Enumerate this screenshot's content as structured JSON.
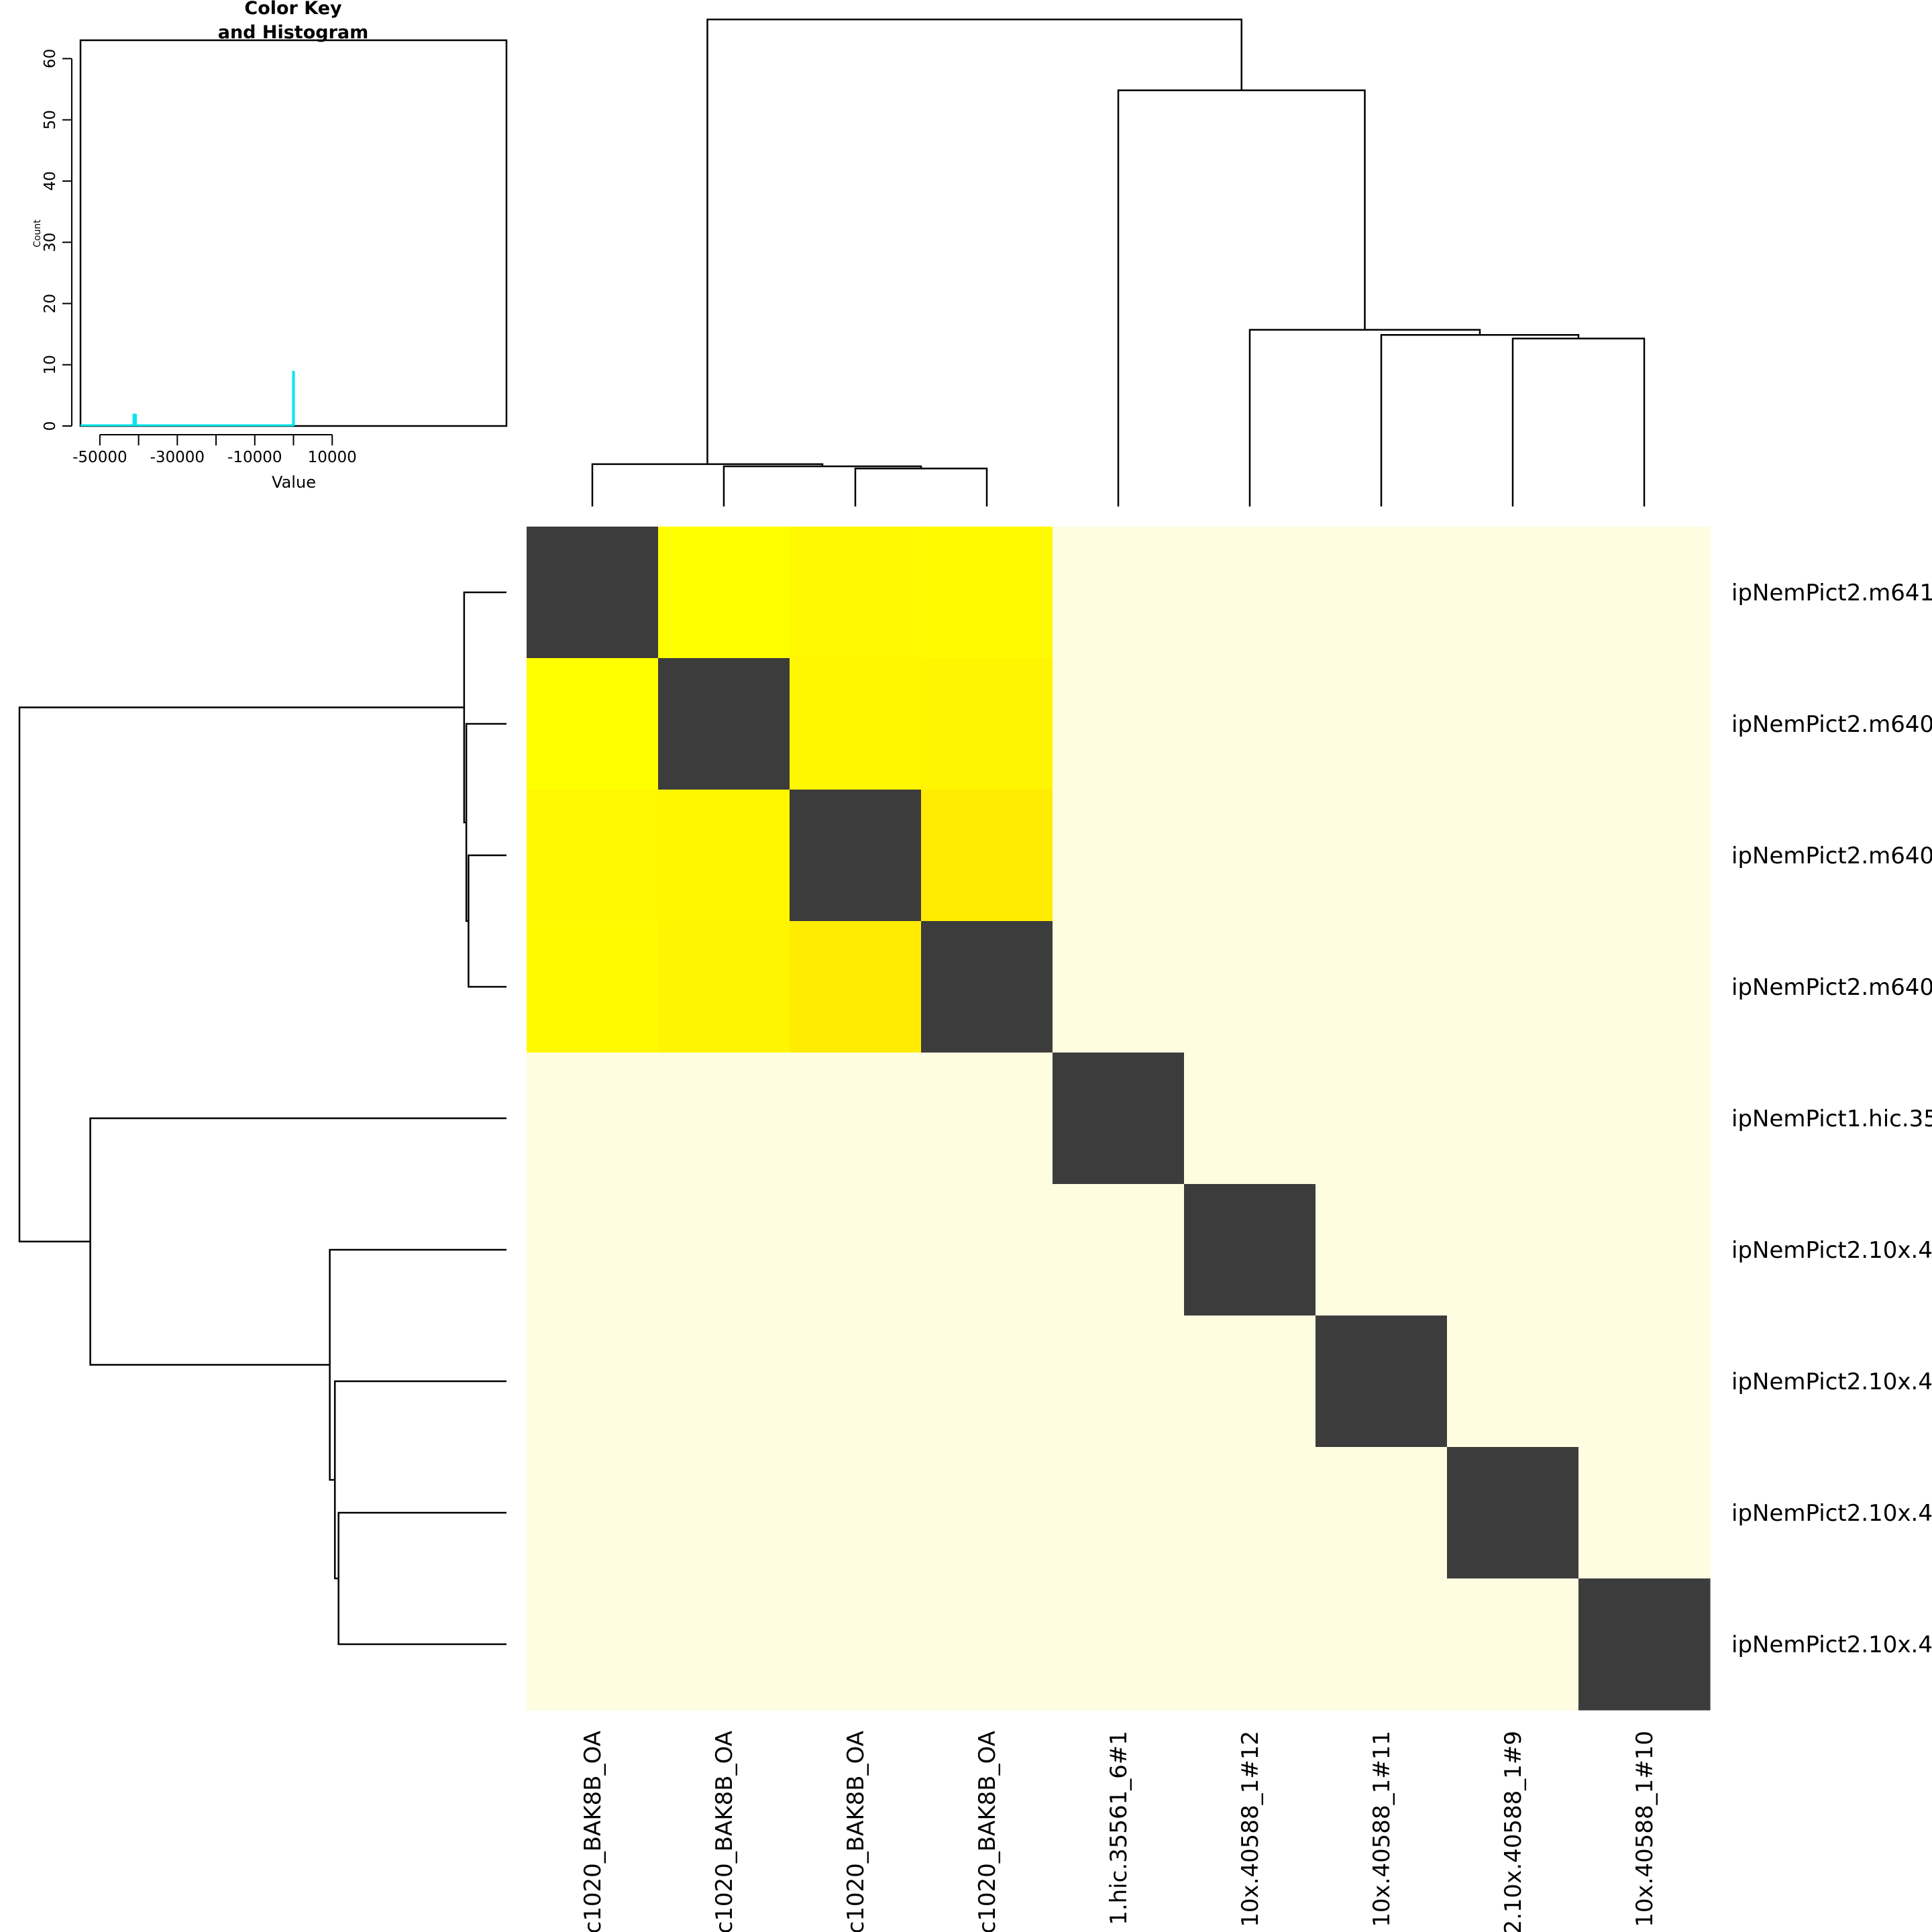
{
  "chart_data": {
    "type": "heatmap",
    "title": "",
    "row_labels": [
      "ipNemPict2.m641",
      "ipNemPict2.m640",
      "ipNemPict2.m640",
      "ipNemPict2.m640",
      "ipNemPict1.hic.35",
      "ipNemPict2.10x.4",
      "ipNemPict2.10x.4",
      "ipNemPict2.10x.4",
      "ipNemPict2.10x.4"
    ],
    "col_labels": [
      "c1020_BAK8B_OA",
      "c1020_BAK8B_OA",
      "c1020_BAK8B_OA",
      "c1020_BAK8B_OA",
      "1.hic.35561_6#1",
      "10x.40588_1#12",
      "10x.40588_1#11",
      "2.10x.40588_1#9",
      "10x.40588_1#10"
    ],
    "value_matrix": [
      [
        -41000,
        2000,
        1800,
        1900,
        40,
        40,
        40,
        40,
        40
      ],
      [
        2000,
        -41000,
        1700,
        1600,
        40,
        40,
        40,
        40,
        40
      ],
      [
        1800,
        1700,
        -41000,
        1200,
        40,
        40,
        40,
        40,
        40
      ],
      [
        1900,
        1600,
        1200,
        -41000,
        40,
        40,
        40,
        40,
        40
      ],
      [
        40,
        40,
        40,
        40,
        -41000,
        40,
        40,
        40,
        40
      ],
      [
        40,
        40,
        40,
        40,
        40,
        -41000,
        40,
        40,
        40
      ],
      [
        40,
        40,
        40,
        40,
        40,
        40,
        -41000,
        40,
        40
      ],
      [
        40,
        40,
        40,
        40,
        40,
        40,
        40,
        -41000,
        40
      ],
      [
        40,
        40,
        40,
        40,
        40,
        40,
        40,
        40,
        -41000
      ]
    ],
    "cell_colors": [
      [
        "#3c3c3c",
        "#ffff00",
        "#fff800",
        "#fffa00",
        "#fffde1",
        "#fffde1",
        "#fffde1",
        "#fffde1",
        "#fffde1"
      ],
      [
        "#ffff00",
        "#3c3c3c",
        "#fff700",
        "#fff500",
        "#fffde1",
        "#fffde1",
        "#fffde1",
        "#fffde1",
        "#fffde1"
      ],
      [
        "#fff800",
        "#fff700",
        "#3c3c3c",
        "#ffec00",
        "#fffde1",
        "#fffde1",
        "#fffde1",
        "#fffde1",
        "#fffde1"
      ],
      [
        "#fffa00",
        "#fff500",
        "#ffec00",
        "#3c3c3c",
        "#fffde1",
        "#fffde1",
        "#fffde1",
        "#fffde1",
        "#fffde1"
      ],
      [
        "#fffde1",
        "#fffde1",
        "#fffde1",
        "#fffde1",
        "#3c3c3c",
        "#fffde1",
        "#fffde1",
        "#fffde1",
        "#fffde1"
      ],
      [
        "#fffde1",
        "#fffde1",
        "#fffde1",
        "#fffde1",
        "#fffde1",
        "#3c3c3c",
        "#fffde1",
        "#fffde1",
        "#fffde1"
      ],
      [
        "#fffde1",
        "#fffde1",
        "#fffde1",
        "#fffde1",
        "#fffde1",
        "#fffde1",
        "#3c3c3c",
        "#fffde1",
        "#fffde1"
      ],
      [
        "#fffde1",
        "#fffde1",
        "#fffde1",
        "#fffde1",
        "#fffde1",
        "#fffde1",
        "#fffde1",
        "#3c3c3c",
        "#fffde1"
      ],
      [
        "#fffde1",
        "#fffde1",
        "#fffde1",
        "#fffde1",
        "#fffde1",
        "#fffde1",
        "#fffde1",
        "#fffde1",
        "#3c3c3c"
      ]
    ],
    "column_dendrogram": {
      "merges": [
        {
          "a": [
            "leaf",
            2
          ],
          "b": [
            "leaf",
            3
          ],
          "height": 5.2
        },
        {
          "a": [
            "leaf",
            1
          ],
          "b": [
            "node",
            0
          ],
          "height": 5.5
        },
        {
          "a": [
            "leaf",
            0
          ],
          "b": [
            "node",
            1
          ],
          "height": 5.8
        },
        {
          "a": [
            "leaf",
            7
          ],
          "b": [
            "leaf",
            8
          ],
          "height": 23.0
        },
        {
          "a": [
            "leaf",
            6
          ],
          "b": [
            "node",
            3
          ],
          "height": 23.5
        },
        {
          "a": [
            "leaf",
            5
          ],
          "b": [
            "node",
            4
          ],
          "height": 24.2
        },
        {
          "a": [
            "leaf",
            4
          ],
          "b": [
            "node",
            5
          ],
          "height": 57.0
        },
        {
          "a": [
            "node",
            2
          ],
          "b": [
            "node",
            6
          ],
          "height": 66.7
        }
      ],
      "max_height": 66.7
    },
    "row_dendrogram": {
      "merges": [
        {
          "a": [
            "leaf",
            2
          ],
          "b": [
            "leaf",
            3
          ],
          "height": 5.2
        },
        {
          "a": [
            "leaf",
            1
          ],
          "b": [
            "node",
            0
          ],
          "height": 5.5
        },
        {
          "a": [
            "leaf",
            0
          ],
          "b": [
            "node",
            1
          ],
          "height": 5.8
        },
        {
          "a": [
            "leaf",
            7
          ],
          "b": [
            "leaf",
            8
          ],
          "height": 23.0
        },
        {
          "a": [
            "leaf",
            6
          ],
          "b": [
            "node",
            3
          ],
          "height": 23.5
        },
        {
          "a": [
            "leaf",
            5
          ],
          "b": [
            "node",
            4
          ],
          "height": 24.2
        },
        {
          "a": [
            "leaf",
            4
          ],
          "b": [
            "node",
            5
          ],
          "height": 57.0
        },
        {
          "a": [
            "node",
            2
          ],
          "b": [
            "node",
            6
          ],
          "height": 66.7
        }
      ],
      "max_height": 66.7
    },
    "color_key": {
      "title_line1": "Color Key",
      "title_line2": "and Histogram",
      "xlabel": "Value",
      "ylabel": "Count",
      "xlim": [
        -55000,
        55000
      ],
      "ylim": [
        0,
        63
      ],
      "x_ticks": [
        -50000,
        -30000,
        -10000,
        10000
      ],
      "x_tick_labels": [
        "-50000",
        "-30000",
        "-10000",
        "10000"
      ],
      "y_ticks": [
        0,
        10,
        20,
        30,
        40,
        50,
        60
      ],
      "y_tick_labels": [
        "0",
        "10",
        "20",
        "30",
        "40",
        "50",
        "60"
      ],
      "histogram": {
        "color": "#00e5ee",
        "bins": [
          {
            "x": -41200,
            "count": 2
          },
          {
            "x": -40800,
            "count": 2
          },
          {
            "x": 0,
            "count": 9
          }
        ],
        "baseline_range": [
          -55000,
          0
        ]
      }
    }
  }
}
